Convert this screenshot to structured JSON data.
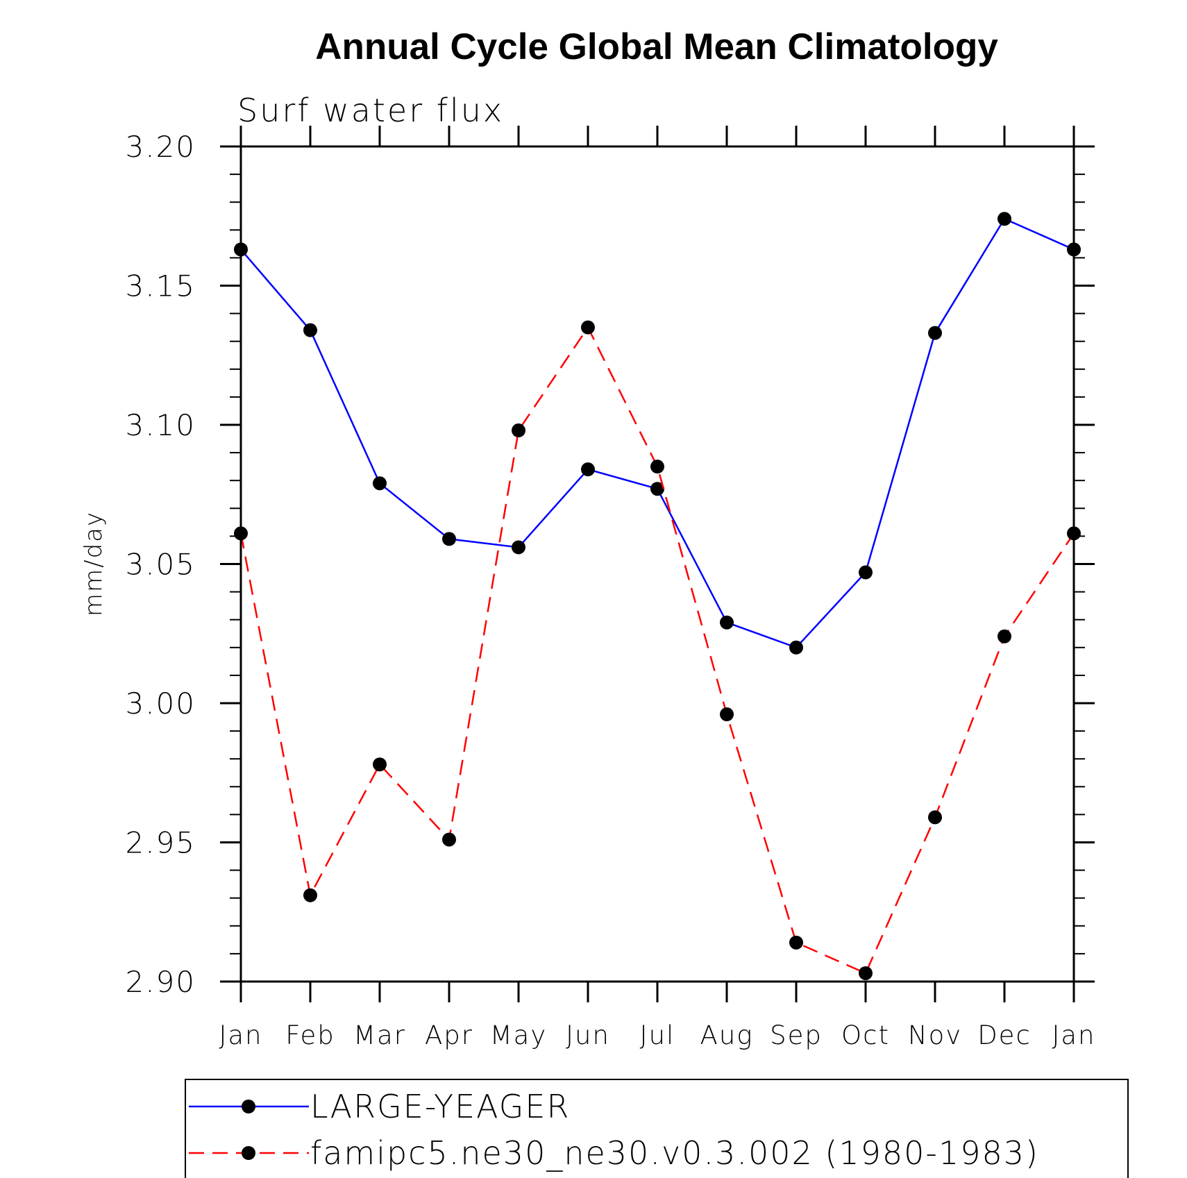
{
  "chart_data": {
    "type": "line",
    "title": "Annual Cycle Global Mean Climatology",
    "subtitle": "Surf water flux",
    "xlabel": "",
    "ylabel": "mm/day",
    "ylim": [
      2.9,
      3.2
    ],
    "yticks": [
      "3.20",
      "3.15",
      "3.10",
      "3.05",
      "3.00",
      "2.95",
      "2.90"
    ],
    "categories": [
      "Jan",
      "Feb",
      "Mar",
      "Apr",
      "May",
      "Jun",
      "Jul",
      "Aug",
      "Sep",
      "Oct",
      "Nov",
      "Dec",
      "Jan"
    ],
    "grid": false,
    "legend_position": "bottom",
    "series": [
      {
        "name": "LARGE-YEAGER",
        "color": "#0000ff",
        "line_style": "solid",
        "marker": "filled-circle",
        "values": [
          3.163,
          3.134,
          3.079,
          3.059,
          3.056,
          3.084,
          3.077,
          3.029,
          3.02,
          3.047,
          3.133,
          3.174,
          3.163
        ]
      },
      {
        "name": "famipc5.ne30_ne30.v0.3.002 (1980-1983)",
        "color": "#ff0000",
        "line_style": "dashed",
        "marker": "filled-circle",
        "values": [
          3.061,
          2.931,
          2.978,
          2.951,
          3.098,
          3.135,
          3.085,
          2.996,
          2.914,
          2.903,
          2.959,
          3.024,
          3.061
        ]
      }
    ]
  }
}
